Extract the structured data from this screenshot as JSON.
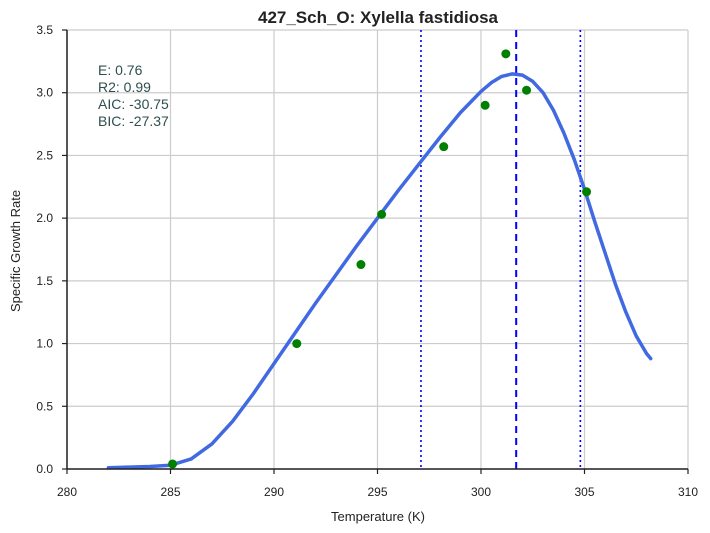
{
  "chart_data": {
    "type": "scatter",
    "title": "427_Sch_O: Xylella fastidiosa",
    "xlabel": "Temperature (K)",
    "ylabel": "Specific Growth Rate",
    "xlim": [
      280,
      310
    ],
    "ylim": [
      0.0,
      3.5
    ],
    "x_ticks": [
      280,
      285,
      290,
      295,
      300,
      305,
      310
    ],
    "y_ticks": [
      0.0,
      0.5,
      1.0,
      1.5,
      2.0,
      2.5,
      3.0,
      3.5
    ],
    "x_tick_labels": [
      "280",
      "285",
      "290",
      "295",
      "300",
      "305",
      "310"
    ],
    "y_tick_labels": [
      "0.0",
      "0.5",
      "1.0",
      "1.5",
      "2.0",
      "2.5",
      "3.0",
      "3.5"
    ],
    "grid": true,
    "points": {
      "color": "#008000",
      "x": [
        285.1,
        291.1,
        294.2,
        295.2,
        298.2,
        300.2,
        301.2,
        302.2,
        305.1
      ],
      "y": [
        0.04,
        1.0,
        1.63,
        2.03,
        2.57,
        2.9,
        3.31,
        3.02,
        2.21
      ]
    },
    "fit_curve": {
      "color": "#4169e1",
      "x": [
        282.0,
        283.0,
        284.0,
        285.0,
        286.0,
        287.0,
        288.0,
        289.0,
        290.0,
        291.0,
        292.0,
        293.0,
        294.0,
        295.0,
        296.0,
        297.0,
        298.0,
        299.0,
        300.0,
        300.5,
        301.0,
        301.5,
        302.0,
        302.5,
        303.0,
        303.5,
        304.0,
        304.5,
        305.0,
        305.5,
        306.0,
        306.5,
        307.0,
        307.5,
        308.0,
        308.2
      ],
      "y": [
        0.01,
        0.015,
        0.02,
        0.03,
        0.08,
        0.2,
        0.38,
        0.6,
        0.84,
        1.08,
        1.32,
        1.55,
        1.78,
        2.0,
        2.22,
        2.43,
        2.64,
        2.84,
        3.01,
        3.08,
        3.13,
        3.15,
        3.14,
        3.09,
        3.0,
        2.86,
        2.68,
        2.47,
        2.23,
        1.97,
        1.72,
        1.47,
        1.25,
        1.06,
        0.92,
        0.88
      ]
    },
    "vertical_lines": [
      {
        "x": 297.1,
        "style": "dotted",
        "color": "#0000ff"
      },
      {
        "x": 301.7,
        "style": "dashed",
        "color": "#0000ff"
      },
      {
        "x": 304.8,
        "style": "dotted",
        "color": "#0000ff"
      }
    ],
    "annotations": [
      "E:  0.76",
      "R2:  0.99",
      "AIC: -30.75",
      "BIC: -27.37"
    ]
  }
}
